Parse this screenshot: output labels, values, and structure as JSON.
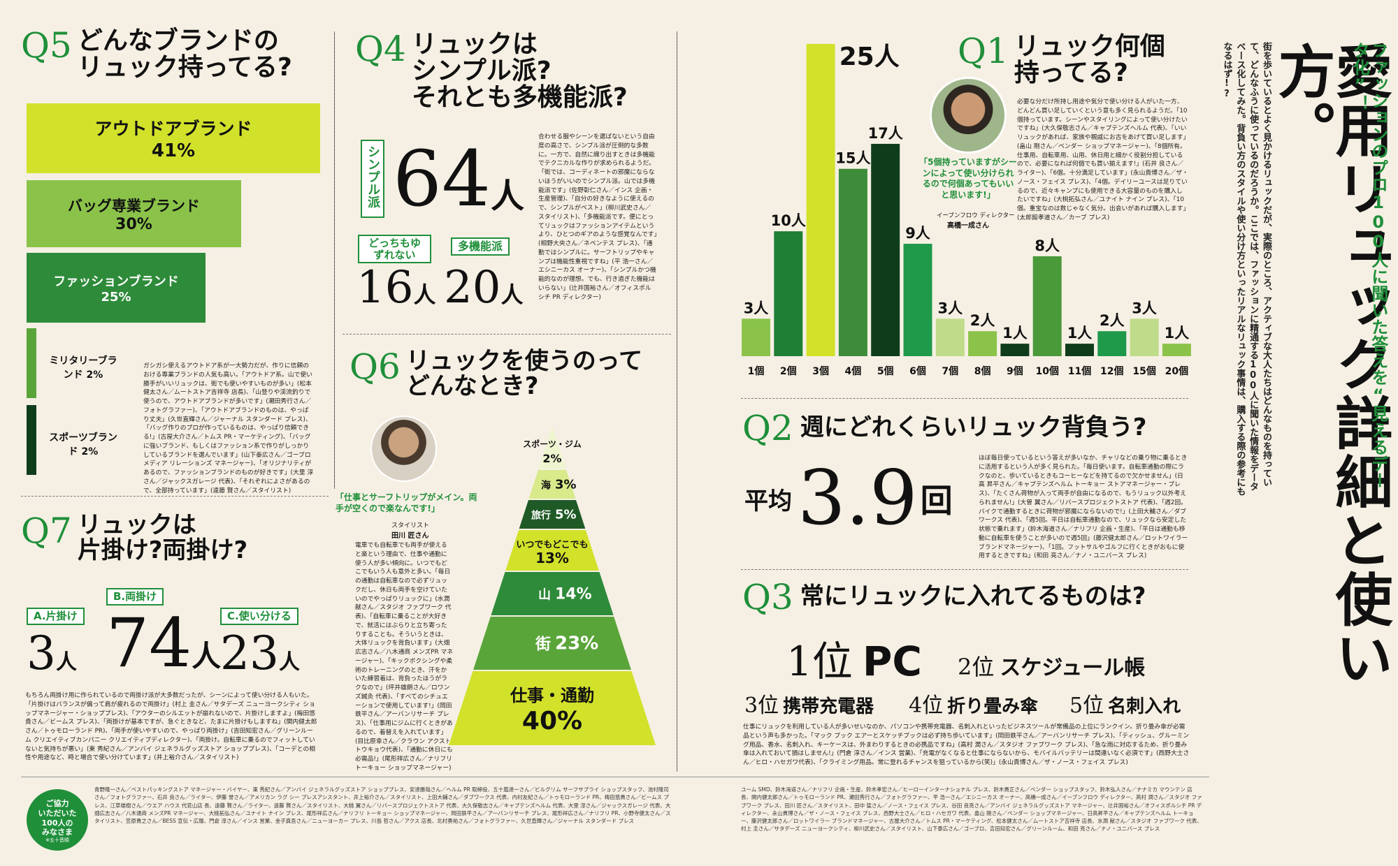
{
  "header": {
    "title": "愛用リュック詳細と使い方。",
    "subtitle": "ファッションのプロ100人に聞いた答えを“見えるデータ化”！",
    "lead": "街を歩いているとよく見かけるリュックだが、実際のところ、アクティブな大人たちはどんなものを持っていて、どんなふうに使っているのだろうか。ここでは、ファッションに精通する100人に聞いた情報をデータベース化してみた。背負い方のスタイルや使い分け方といったリアルなリュック事情は、購入する際の参考にもなるはず!?"
  },
  "q5": {
    "num": "Q5",
    "title_line1": "どんなブランドの",
    "title_line2": "リュック持ってる?",
    "bars": [
      {
        "label": "アウトドアブランド",
        "pct": "41%",
        "value": 41,
        "color": "#d2e12a"
      },
      {
        "label": "バッグ専業ブランド",
        "pct": "30%",
        "value": 30,
        "color": "#8bc34a"
      },
      {
        "label": "ファッションブランド",
        "pct": "25%",
        "value": 25,
        "color": "#2e8b3a"
      },
      {
        "label": "ミリタリーブランド 2%",
        "pct": "",
        "value": 2,
        "color": "#5aa53a"
      },
      {
        "label": "スポーツブランド 2%",
        "pct": "",
        "value": 2,
        "color": "#0f3d1c"
      }
    ],
    "body": "ガシガシ使えるアウトドア系が一大勢力だが、作りに信頼のおける専業ブランドの人気も高い。「アウトドア系。山で使い勝手がいいリュックは、街でも使いやすいものが多い」(松本健太さん／ムートストア吉祥寺 店長)、「山登りや渓流釣りで使うので、アウトドアブランドが多いです」(潮田秀行さん／フォトグラファー)、「アウトドアブランドのものは、やっぱり丈夫」(久世直輝さん／ジャーナル スタンダード プレス)、「バッグ作りのプロが作っているものは、やっぱり信頼できる!」(古屋大介さん／トムス PR・マーケティング)、「バッグに強いブランド、もしくはファッション系で作りがしっかりしているブランドを選んでいます」(山下泰広さん／ゴーブロ メディア リレーションズ マネージャー)、「オリジナリティがあるので、ファッションブランドのものが好きです」(大里 淳さん／ジャックスガレージ 代表)、「それぞれによさがあるので、全部持っています」(遠藤 賢さん／スタイリスト)"
  },
  "q4": {
    "num": "Q4",
    "title_line1": "リュックは",
    "title_line2": "シンプル派?",
    "title_line3": "それとも多機能派?",
    "simple_label": "シンプル派",
    "simple_count": "64",
    "unit": "人",
    "either_label": "どっちもゆずれない",
    "either_count": "16",
    "multi_label": "多機能派",
    "multi_count": "20",
    "body": "合わせる服やシーンを選ばないという自由度の高さで、シンプル派が圧倒的な多数に。一方で、自然に織り出すときは多機能でテクニカルな作りが求められるようだ。「街では、コーディネートの邪魔にならないほうがいいのでシンプル派。山では多機能派です」(佐野彰仁さん／インス 企画・生産管理)、「自分の好きなように使えるので、シンプルがベスト」(柳川武史さん／スタイリスト)、「多機能派です。便にとってリュックはファッションアイテムというより、ひとつのギアのような感覚なんです」(相野大央さん／ネペンテス プレス)、「通勤ではシンプルに。サーフトリップやキャンプは機能性重視ですね」(平 浩一さん／エシニーカス オーナー)、「シンプルかつ機能的なのが理想。でも、行き過ぎた機能はいらない」(辻井国裕さん／オフィスポルシチ PR ディレクター)"
  },
  "q1": {
    "num": "Q1",
    "title_line1": "リュック何個",
    "title_line2": "持ってる?",
    "quote": "「5個持っていますがシーンによって使い分けられるので何個あってもいいと思います!」",
    "person_role": "イーブンフロウ ディレクター",
    "person_name": "高橋一成さん",
    "body": "必要な分だけ所持し用途や気分で使い分ける人がいた一方、どんどん買い足していくという意も多く見られるようだ。「10個持っています。シーンやスタイリングによって使い分けたいですね」(大久保敬志さん／キャプテンズヘルム 代表)、「いいリュックがあれば、家族や親戚にお古をあげて買い足します」(畠山 剛さん／ベンダー ショップマネージャー)、「8個所有。仕事用、自転車用、山用、休日用と細かく役割分担しているので、必要になれば何個でも買い揃えます!」(石井 良さん／ライター)、「6個。十分満足しています」(永山貴博さん／ザ・ノース・フェイス プレス)、「4個。デイリーユースは足りているので、近々キャンプにも使用できる大容量のものを購入したいですね」(大桃拓弘さん／ユナイト ナイン プレス)、「10個。重宝なのは数じゃなく気分。出会いがあれば購入します」(太郎館孝道さん／カーブ プレス)",
    "unit": "人",
    "chart_data": {
      "type": "bar",
      "categories": [
        "1個",
        "2個",
        "3個",
        "4個",
        "5個",
        "6個",
        "7個",
        "8個",
        "9個",
        "10個",
        "11個",
        "12個",
        "15個",
        "20個"
      ],
      "values": [
        3,
        10,
        25,
        15,
        17,
        9,
        3,
        2,
        1,
        8,
        1,
        2,
        3,
        1
      ],
      "colors": [
        "#8bc34a",
        "#1f7f35",
        "#d2e12a",
        "#3c8c3a",
        "#0f3d1c",
        "#1f9a4a",
        "#bfdc8a",
        "#8bc34a",
        "#0f3d1c",
        "#4a9a3a",
        "#0f3d1c",
        "#1f9a4a",
        "#bfdc8a",
        "#8bc34a"
      ],
      "ylim": [
        0,
        26
      ]
    }
  },
  "q2": {
    "num": "Q2",
    "title": "週にどれくらいリュック背負う?",
    "avg_label": "平均",
    "avg_value": "3.9",
    "avg_unit": "回",
    "body": "ほぼ毎日使っているという答えが多いなか、チャリなどの乗り物に乗るときに活用するという人が多く見られた。「毎日使います。自転車通勤の際にラクなのと、歩いているときもコーヒーなどを持てるので欠かせません」(日高 昇平さん／キャプテンズヘルム トーキョー ストアマネージャー・プレス)、「たくさん荷物が入って両手が自由になるので、もうリュック以外考えられません!」(大曽 翼さん／リバースプロジェクトストア 代表)、「週2回。バイクで通勤するときに荷物が邪魔にならないので!」(上田大輔さん／ダブワークス 代表)、「週5回。平日は自転車通勤なので、リュックなら安定した状態で乗れます」(鈴木海道さん／ナリフリ 企画・生産)、「平日は通勤も移動に自転車を使うことが多いので週5回」(藤沢健太郎さん／ロットワイラー ブランドマネージャー)、「1回。フットサルやゴルフに行くときがおもに使用するときですね」(和田 亮さん／ナノ・ユニバース プレス)"
  },
  "q3": {
    "num": "Q3",
    "title": "常にリュックに入れてるものは?",
    "rank1_pos": "1位",
    "rank1_item": "PC",
    "rank2_pos": "2位",
    "rank2_item": "スケジュール帳",
    "rank3_pos": "3位",
    "rank3_item": "携帯充電器",
    "rank4_pos": "4位",
    "rank4_item": "折り畳み傘",
    "rank5_pos": "5位",
    "rank5_item": "名刺入れ",
    "body": "仕事にリュックを利用している人が多いせいなのか、パソコンや携帯充電器、名刺入れといったビジネスツールが常備品の上位にランクイン。折り畳み傘が必需品という声も多かった。「マック ブック エアーとスケッチブックは必ず持ち歩いています」(岡田鉄平さん／アーバンリサーチ プレス)、「ティッシュ、グルーミング用品、香水、名刺入れ、キーケースは、外まわりするときの必携品ですね」(高村 潤さん／スタジオ ファブワーク プレス)、「急な雨に対応するため、折り畳み傘は入れておいて損はしません!」(門倉 淳さん／インス 営業)、「充電がなくなると仕事にならないから、モバイルバッテリーは間違いなく必須です」(西野大士さん／ヒロ・ハセガワ代表)、「クライミング用品。常に登れるチャンスを狙っているから(笑)」(永山貴博さん／ザ・ノース・フェイス プレス)"
  },
  "q6": {
    "num": "Q6",
    "title_line1": "リュックを使うのって",
    "title_line2": "どんなとき?",
    "quote": "「仕事とサーフトリップがメイン。両手が空くので楽なんです!」",
    "person_role": "スタイリスト",
    "person_name": "田川 匠さん",
    "body": "電車でも自転車でも両手が使えると楽という理由で、仕事や通勤に使う人が多い傾向に。いつでもどこでもいう人も意外と多い。「毎日の通勤は自転車なので必ずリュックだし、休日も両手を空けていたいのでやっぱりリュックに」(水潤 献さん／スタジオ ファブワーク 代表)、「自転車に乗ることが大好きで、就活にはぶらりと立ち寄ったりすることも。そういうときは、大体リュックを背負います」(大畑広志さん／八木通商 メンズPR マネージャー)、「キックボクシングや柔術のトレーニングのとき、汗をかいた練習着は、背負ったほうがラクなので」(坪井雄朗さん／ロワンズ鍼灸 代表)、「すべてのシチュエーションで使用しています!」(岡田鉄平さん／アーバンリサーチ プレス)、「仕事用にジムに行くときがあるので、着替えを入れています」(目比原幸さん／クラウン アクスト トウキョウ代表)、「通勤に休日にも必需品!」(尾形祥広さん／ナリフリ トーキョー ショップマネージャー)",
    "chart_data": {
      "type": "pyramid",
      "categories": [
        "スポーツ・ジム",
        "海",
        "旅行",
        "いつでもどこでも",
        "山",
        "街",
        "仕事・通勤"
      ],
      "values": [
        2,
        3,
        5,
        13,
        14,
        23,
        40
      ],
      "labels": [
        "2%",
        "3%",
        "5%",
        "13%",
        "14%",
        "23%",
        "40%"
      ],
      "colors": [
        "#eef6d0",
        "#d8ea8a",
        "#1f5a26",
        "#d2e12a",
        "#2e8b3a",
        "#5aa53a",
        "#d2e12a"
      ]
    }
  },
  "q7": {
    "num": "Q7",
    "title_line1": "リュックは",
    "title_line2": "片掛け?両掛け?",
    "options": [
      {
        "label": "A.片掛け",
        "count": "3"
      },
      {
        "label": "B.両掛け",
        "count": "74"
      },
      {
        "label": "C.使い分ける",
        "count": "23"
      }
    ],
    "unit": "人",
    "body": "もちろん両掛け用に作られているので両掛け派が大多数だったが、シーンによって使い分ける人もいた。「片掛けはバランスが偏って肩が疲れるので両掛け」(村上 圭さん／サタデーズ ニューヨークシティ ショップマネージャー・ショッププレス)、「アウターのシルエットが崩れないので、片掛けしますよ」(梅田悠貴さん／ビームス プレス)、「両掛けが基本ですが、急ぐときなど、たまに片掛けもしますね」(関内健太郎さん／トゥモローランド PR)、「両手が使いやすいので、やっぱり両掛け」(吉田知宏さん／グリーンルーム クリエイティブカンパニー クリエイティブディレクター)、「両掛け。自転車に乗るのでフィットしていないと気持ちが悪い」(東 秀紀さん／アンバイ ジェネラルグッズストア ショッププレス)、「コーデとの相性や用途など、時と場合で使い分けています」(井上裕介さん／スタイリスト)"
  },
  "credits": {
    "box_line1": "ご協力",
    "box_line2": "いただいた",
    "box_line3": "100人の",
    "box_line4": "みなさま",
    "box_line5": "※五十音順",
    "left": "青野隆一さん／ベストパッキングストア マネージャー・バイヤー、東 秀紀さん／アンバイ ジェネラルグッズストア ショッププレス、安達勝哉さん／ヘルム PR 取締役、五十嵐達一さん／ビルグリム サーフサプライ ショップスタッフ、池村隆司さん／フォトグラファー、石井 良さん／ライター、伊藤 誉さん／アメリカン ラグ シー プレスアシスタント、井上裕介さん／スタイリスト、上田大輔さん／ダブワークス 代表、内村友紀さん／トゥモローランド PR、梅田悠貴さん／ビームス プレス、江草雄樹さん／ウエア ハウス 代官山店 長、遠藤 賢さん／ライター、遠藤 賢さん／スタイリスト、大桃 翼さん／リバースプロジェクトストア 代表、大久保敬志さん／キャプテンズヘルム 代表、大里 淳さん／ジャックスガレージ 代表、大畑広志さん／八木通商 メンズPR マネージャー、大桃拓弘さん／ユナイト ナイン プレス、尾形祥広さん／ナリフリ トーキョー ショップマネージャー、岡田鉄平さん／アーバンリサーチ プレス、尾形祥広さん／ナリフリ PR、小野寺健太さん／スタイリスト、笠原貴之さん／BESS 宣伝・広報、門倉 淳さん／インス 営業、金子真吾さん／ニューヨーカー プレス、川島 哲さん／アクス 店長、北村勇祐さん／フォトグラファー、久世直輝さん／ジャーナル スタンダード プレス",
    "right": "ユーム SMD、鈴木海道さん／ナリフリ 企画・生産、鈴木孝宏さん／ヒーローインターナショナル プレス、鈴木貴正さん／ベンダー ショップスタッフ、鈴木弘人さん／ナナミカ マウンテン 店長、関内健太郎さん／トゥモローランド PR、瀬田秀行さん／フォトグラファー、平 浩一さん／エシニーカス オーナー、高橋一成さん／イーブンフロウ ディレクター、高村 潤さん／スタジオ ファブワーク プレス、田川 匠さん／スタイリスト、田中 猛さん／ノース・フェイス プレス、谷田 良亮さん／アンバイ ジェネラルグッズストア マネージャー、辻井国裕さん／オフィスポルシチ PR ディレクター、永山貴博さん／ザ・ノース・フェイス プレス、西野大士さん／ヒロ・ハセガワ 代表、畠山 剛さん／ベンダー ショップマネージャー、日高昇平さん／キャプテンズヘルム トーキョー、藤沢健太郎さん／ロットワイラー ブランドマネージャー、古屋大介さん／トムス PR・マーケティング、松本健太さん／ムートストア吉祥寺 店長、水潤 献さん／スタジオ ファブワーク 代表、村上 圭さん／サタデーズ ニューヨークシティ、柳川武史さん／スタイリスト、山下泰広さん／ゴーブロ、吉田知宏さん／グリーンルーム、和田 亮さん／ナノ・ユニバース プレス"
  }
}
